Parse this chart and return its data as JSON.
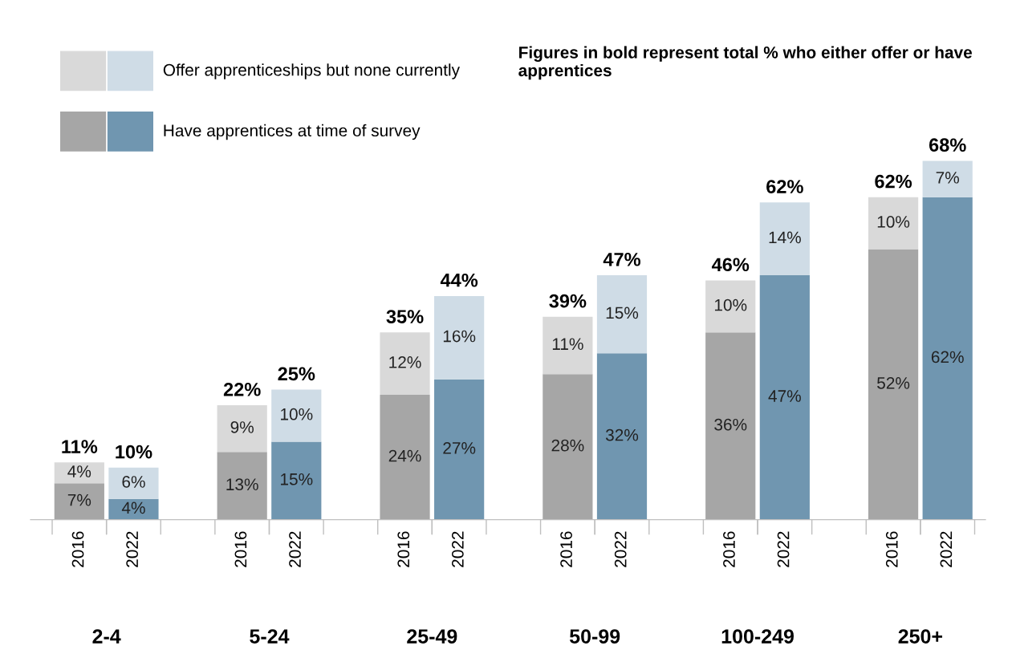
{
  "chart_data": {
    "type": "bar",
    "stacked": true,
    "categories": [
      "2016",
      "2022",
      "2016",
      "2022",
      "2016",
      "2022",
      "2016",
      "2022",
      "2016",
      "2022",
      "2016",
      "2022"
    ],
    "series": [
      {
        "name": "Have apprentices at time of survey",
        "colors": [
          "#a6a6a6",
          "#7096b0",
          "#a6a6a6",
          "#7096b0",
          "#a6a6a6",
          "#7096b0",
          "#a6a6a6",
          "#7096b0",
          "#a6a6a6",
          "#7096b0",
          "#a6a6a6",
          "#7096b0"
        ],
        "values": [
          7,
          4,
          13,
          15,
          24,
          27,
          28,
          32,
          36,
          47,
          52,
          62
        ],
        "value_labels": [
          "7%",
          "4%",
          "13%",
          "15%",
          "24%",
          "27%",
          "28%",
          "32%",
          "36%",
          "47%",
          "52%",
          "62%"
        ]
      },
      {
        "name": "Offer apprenticeships but none currently",
        "colors": [
          "#d9d9d9",
          "#cfdce6",
          "#d9d9d9",
          "#cfdce6",
          "#d9d9d9",
          "#cfdce6",
          "#d9d9d9",
          "#cfdce6",
          "#d9d9d9",
          "#cfdce6",
          "#d9d9d9",
          "#cfdce6"
        ],
        "values": [
          4,
          6,
          9,
          10,
          12,
          16,
          11,
          15,
          10,
          14,
          10,
          7
        ],
        "value_labels": [
          "4%",
          "6%",
          "9%",
          "10%",
          "12%",
          "16%",
          "11%",
          "15%",
          "10%",
          "14%",
          "10%",
          "7%"
        ]
      }
    ],
    "totals": [
      "11%",
      "10%",
      "22%",
      "25%",
      "35%",
      "44%",
      "39%",
      "47%",
      "46%",
      "62%",
      "62%",
      "68%"
    ],
    "legend": "top left",
    "annotations": [
      "Figures in bold represent total % who either offer or have apprentices",
      "2-4",
      "5-24",
      "25-49",
      "50-99",
      "100-249",
      "250+"
    ]
  }
}
